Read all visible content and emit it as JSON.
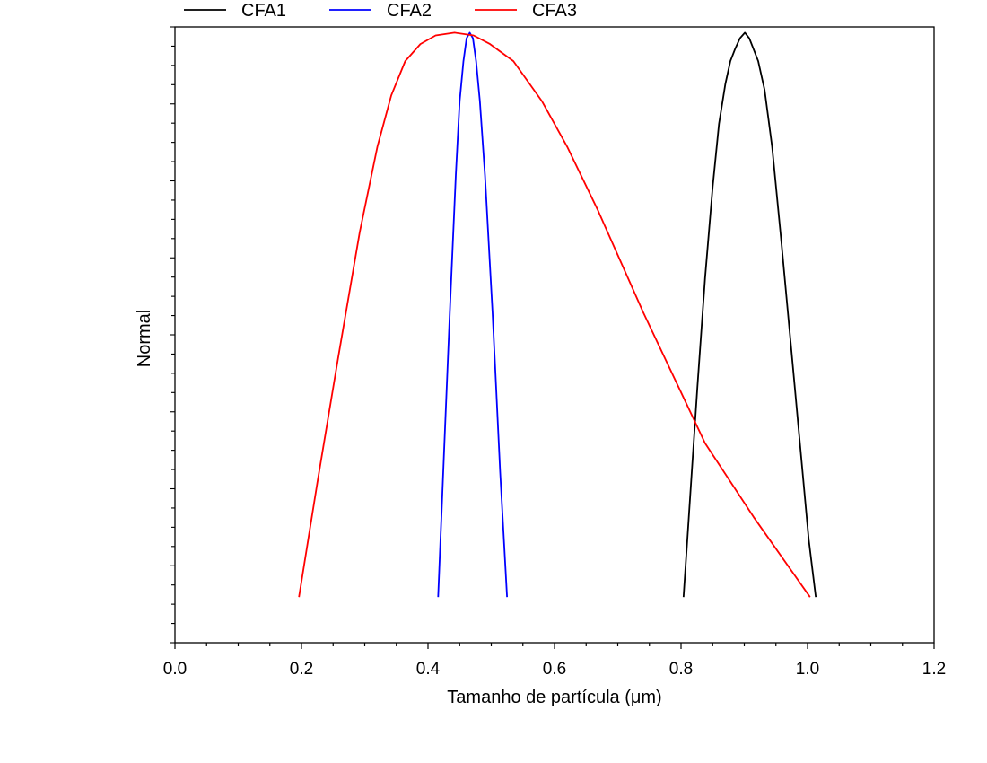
{
  "chart_data": {
    "type": "line",
    "title": "",
    "xlabel": "Tamanho de partícula (μm)",
    "ylabel": "Normal",
    "xlim": [
      0.0,
      1.2
    ],
    "ylim": [
      0.0,
      1.08
    ],
    "y_tick_labels_visible": false,
    "grid": false,
    "legend_position": "top-left, above plot",
    "xticks": [
      {
        "value": 0.0,
        "label": "0.0"
      },
      {
        "value": 0.2,
        "label": "0.2"
      },
      {
        "value": 0.4,
        "label": "0.4"
      },
      {
        "value": 0.6,
        "label": "0.6"
      },
      {
        "value": 0.8,
        "label": "0.8"
      },
      {
        "value": 1.0,
        "label": "1.0"
      },
      {
        "value": 1.2,
        "label": "1.2"
      }
    ],
    "series": [
      {
        "name": "CFA1",
        "color": "#000000",
        "x": [
          0.804,
          0.814,
          0.826,
          0.838,
          0.85,
          0.86,
          0.87,
          0.878,
          0.885,
          0.893,
          0.901,
          0.908,
          0.915,
          0.922,
          0.932,
          0.944,
          0.958,
          0.973,
          0.988,
          1.002,
          1.013
        ],
        "y": [
          0.08,
          0.25,
          0.45,
          0.64,
          0.8,
          0.91,
          0.98,
          1.02,
          1.04,
          1.06,
          1.07,
          1.06,
          1.04,
          1.02,
          0.97,
          0.87,
          0.71,
          0.53,
          0.35,
          0.18,
          0.08
        ]
      },
      {
        "name": "CFA2",
        "color": "#0000ff",
        "x": [
          0.416,
          0.426,
          0.436,
          0.444,
          0.45,
          0.456,
          0.461,
          0.466,
          0.471,
          0.476,
          0.482,
          0.49,
          0.502,
          0.514,
          0.525
        ],
        "y": [
          0.08,
          0.35,
          0.62,
          0.82,
          0.95,
          1.02,
          1.06,
          1.07,
          1.06,
          1.02,
          0.95,
          0.82,
          0.58,
          0.3,
          0.08
        ]
      },
      {
        "name": "CFA3",
        "color": "#ff0000",
        "x": [
          0.196,
          0.225,
          0.258,
          0.292,
          0.32,
          0.342,
          0.364,
          0.388,
          0.412,
          0.442,
          0.472,
          0.498,
          0.535,
          0.58,
          0.62,
          0.668,
          0.74,
          0.838,
          0.915,
          1.004
        ],
        "y": [
          0.08,
          0.28,
          0.5,
          0.72,
          0.87,
          0.96,
          1.02,
          1.05,
          1.065,
          1.07,
          1.065,
          1.05,
          1.02,
          0.95,
          0.87,
          0.76,
          0.58,
          0.35,
          0.22,
          0.08
        ]
      }
    ]
  }
}
